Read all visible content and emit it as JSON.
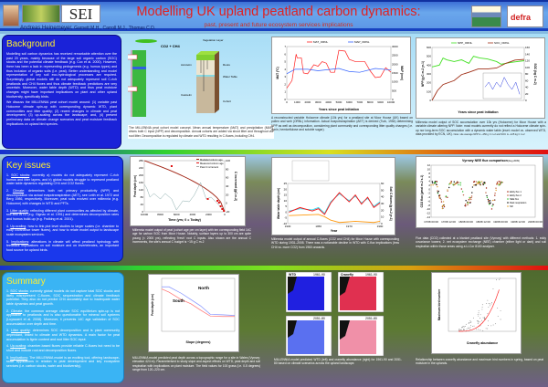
{
  "header": {
    "title": "Modelling UK upland peatland carbon dynamics:",
    "subtitle": "past, present and future ecosystem services implications",
    "author_main": "Andreas Heinemeyer,",
    "author_others": "Garnett M.H., Carroll M.J., Thomas C.D.",
    "logos": [
      "University of York",
      "SEI",
      "Yorkshire Peat Partnership",
      "defra"
    ]
  },
  "background": {
    "heading": "Background",
    "paragraphs": [
      "Modelling soil carbon dynamics has received remarkable attention over the past 20 years, mainly because of the large soil organic carbon (SOC) stocks and the potential climate feedback (e.g. Cox et al. 2000). However, there has been a lack in representing pedogenesis (e.g. humus types) and thus inclusion of organic soils (i.e. peat). Better understanding and model representation of key soil eco-hydrological processes are required. Surprisingly, global models still do not adequately represent soil C-rich peatlands and CH4 fluxes and thus climate feedback predictions are very uncertain. Moreover, water table depth (WTD) and thus peat moisture changes might have important implications on plant and other upland biodiversity, specifically birds.",
      "We discuss the MILLENNIA peat cohort model around: (1) variable past Holocene climate spin-up with corresponding dynamic WTD, plant communities and litter quality; (2) recent changes in climate and peat development; (3) up-scaling across the landscape; and, (4) present preliminary data on climate change scenarios and peat moisture feedback implications on upland bird species."
    ]
  },
  "key_issues": {
    "heading": "Key issues",
    "items": [
      {
        "term": "SOC stocks",
        "text": ": currently a) models do not adequately represent C-rich humus and litter layers, and b) global models struggle to represent peatland water table dynamics regulating CH4 and CO2 fluxes."
      },
      {
        "term": "Climate",
        "text": ": determines both net primary productivity (NPP) and decomposition via actual evapotranspiration (AET), see Leith et al. 1972 and Berg 1986, respectively. Moreover, peat soils evolved over millennia (e.g. Holocene) with changes in WTD and PFTs."
      },
      {
        "term": "Litter quality",
        "text": ": reflecting different plant communities as affected by climate, soil and WTD (e.g. Gignac et al. 1991) and determines decomposition rates and humus build-up (e.g. Frolking et al. 2001)."
      },
      {
        "term": "Up-scaling",
        "text": ": how to link plot level studies to larger scales (i.e. chamber to eddy covariance tower fluxes), and how to relate model output to landscape scale ecosystem services."
      },
      {
        "term": "Implications",
        "text": ": alterations in climate will affect peatland hydrology with feedback implications on soil moisture and on invertebrates, an important food source for upland birds."
      }
    ]
  },
  "summary": {
    "heading": "Summary",
    "items": [
      {
        "term": "SOC stocks",
        "text": ": currently global models do not capture total SOC stocks and likely misrepresent C-fluxes, SOC sequestration and climate feedback potential. They also do not predict CH4 accurately due to inadequate water table dynamics and peat growth."
      },
      {
        "term": "Climate",
        "text": ": the common average climate SOC equilibrium spin-up is not applicable to peatlands and is also questionable for mineral soil systems (Luyssaert et al. 2008). Moreover, it prevents 14C age validation of SOC accumulation over depth and time."
      },
      {
        "term": "Litter quality",
        "text": ": determines SOC decomposition and is plant community dependant, linked to climate and WTD dynamics. A main factor for peat accumulation is lignin content and root litter SOC input."
      },
      {
        "term": "Up-scaling",
        "text": ": chamber-based fluxes provide reliable C-fluxes but need to be short and include root and decomposition fluxes."
      },
      {
        "term": "Implications",
        "text": ": The MILLENNIA model is an exciting tool, offering landscape- scale applications in relation to peat development and key ecosystem services (i.e. carbon stocks, water and biodiversity)."
      }
    ]
  },
  "cohort": {
    "top_label": "CO2 + CH4",
    "labels": [
      "Vegetation Layer",
      "Acrotelm",
      "Roots",
      "Water Table",
      "Catotelm",
      "Cohort"
    ],
    "caption": "The MILLENNIA peat cohort model concept. Mean annual temperature (MAT) and precipitation (MAP) drives both C input (NPP) and decomposition. Annual cohorts are added via shoot litter and throughout via root litter. Decomposition is regulated by climate and WTD resulting in C-fluxes, including CH4."
  },
  "figures": {
    "mat": {
      "legend": [
        "MAT_ORNL",
        "MAP_ORNL"
      ],
      "ylabel_left": "MAT (°C)",
      "ylabel_right": "MAP (mm)",
      "xlabel": "Years since peat initiation",
      "yticks_left": [
        "0",
        "1",
        "2",
        "3",
        "4",
        "5",
        "6",
        "7"
      ],
      "yticks_right": [
        "0",
        "500",
        "1000",
        "1500",
        "2000",
        "2500",
        "3000"
      ],
      "xticks": [
        "0",
        "1000",
        "2000",
        "3000",
        "4000",
        "5000",
        "6000",
        "7000",
        "8000",
        "9000",
        "10000"
      ],
      "colors": [
        "#ff2020",
        "#3060ff"
      ],
      "caption": "A reconstructed variable Holocene climate (10k yrs) for a peatland site at Moor House (UK) based on pollen and web (ORNL) information. Actual evapotranspiration (AET) is derived (Turk, 1954) determining NPP as well as decomposition, considering plant community and corresponding litter quality changes (i.e. lignin, hemicellulose and soluble sugar)."
    },
    "npp": {
      "legend": [
        "NPP_ORNL",
        "SOC_ORNL"
      ],
      "ylabel_left": "NPP (g C m-2 yr-1)",
      "ylabel_right": "SOC (kg C m-2)",
      "xlabel": "Years since peat initiation",
      "yticks_left": [
        "0",
        "100",
        "200",
        "300",
        "400",
        "500",
        "600"
      ],
      "yticks_right": [
        "0",
        "20",
        "40",
        "60",
        "80",
        "100",
        "120",
        "140",
        "160"
      ],
      "colors": [
        "#40e020",
        "#a03018"
      ],
      "caption": "Millennia model output of SOC accumulation over 10k yrs (Holocene) for Moor House with a variable climate altering NPP. Note: most models currently do not reflect a Holocene climate spin-up nor long-term SOC accumulation with a dynamic water table (inset: model vs. observed WTD, data provided by ECN, UK).",
      "note": "Note: site average NPP is ~450 g C m-2 and SOC is ~125 kg C m-2"
    },
    "peat": {
      "legend": [
        "Modelled column age",
        "Measured column age",
        "Peat C increment"
      ],
      "ylabel_left": "Peat depth (cm)",
      "ylabel_right": "C increment (gC m-2)",
      "xlabel": "Time (yrs; 0 = Today)",
      "yticks_left": [
        "0",
        "40",
        "80",
        "120",
        "160",
        "200",
        "240",
        "280"
      ],
      "yticks_right": [
        "-20",
        "0",
        "20",
        "40",
        "60",
        "80",
        "100"
      ],
      "xticks": [
        "10000",
        "8000",
        "6000",
        "4000",
        "2000",
        "0"
      ],
      "caption": "Millennia model output of peat (cohort age per cm layer) with ten corresponding field 14C age for carbon SOC from Moor House. Notably, surface layers up to 300 cm are quite young (< 2000 yrs), reflecting 'fresh' root C inputs. Also shown are the annual C increments, the site's annual C budget is ~15 g C m-2"
    },
    "wtd": {
      "ylabel_left": "Water table depth (cm)",
      "ylabel_right": "Soil C fluxes (g m-2 yr-1)",
      "xlabel": "Year",
      "yticks_left": [
        "-10",
        "-5",
        "0",
        "5",
        "10",
        "15",
        "20",
        "25"
      ],
      "yticks_right": [
        "0",
        "10",
        "20",
        "30",
        "40",
        "50",
        "60"
      ],
      "xticks": [
        "1930",
        "1950",
        "1970",
        "1990"
      ],
      "caption": "Millennia model output of annual C-fluxes (CO2 and CH4) for Moor House with corresponding WTD during 1931–2005. There was a noticeable decline in WTD with C-flux implications (less CH4 vs. more CO2) from 1960 onwards."
    },
    "nee": {
      "title": "Vyrnwy NEE flux comparison",
      "title_note": "(Aug 2009)",
      "ylabel": "CO2 flux (µmol m-2 s-1)",
      "legend": [
        "Eddy flux 1",
        "Eddy flux 2",
        "NEE flux",
        "Dark respiration",
        "SR"
      ],
      "yticks": [
        "-14",
        "-12",
        "-10",
        "-8",
        "-6",
        "-4",
        "-2",
        "0",
        "2",
        "4",
        "6",
        "8",
        "10",
        "12"
      ],
      "xticks": [
        "17/08 00:00",
        "17/08 12:00",
        "18/08 00:00",
        "18/08 12:00",
        "19/08 00:00",
        "19/08 12:00",
        "20/08 00:00"
      ],
      "caption": "Flux data (CO2) collected at a blanket peatland site (Vyrnwy) with different methods: 1. eddy covariance towers; 2. net ecosystem exchange (NEE) chamber (either light or dark) and soil respiration within those areas using a Li-Cor 8100 analyser."
    },
    "slope": {
      "labels": [
        "North",
        "South"
      ],
      "ylabel": "Peat depth (cm)",
      "xlabel": "Slope (degrees)",
      "colors": [
        "#8090ff",
        "#ff7070"
      ],
      "caption": "MILLENNIA model predicted peat depth across a topographic range for a site in Wales (Vyrnwy: elevation 424 m). Parameterised to study slope and aspect effects on WTD, peat depth and soil respiration with implications on plant moisture. The field values for 100 grass (i.e. 0-5 degrees) range from 120–220 cm."
    },
    "maps": {
      "titles": [
        "WTD",
        "1961-90",
        "Cranefly",
        "1961-90",
        "2051-80",
        "2051-80"
      ],
      "caption": "MILLENNIA model predicted WTD (left) and cranefly abundance (right) for 1961-90 and 2051-80 based on climate scenarios across the upland landscape."
    },
    "birds": {
      "ylabel": "Maximum bird number",
      "xlabel": "Cranefly abundance",
      "caption": "Relationship between cranefly abundance and maximum bird numbers in spring, based on peat moisture in the uplands."
    }
  }
}
